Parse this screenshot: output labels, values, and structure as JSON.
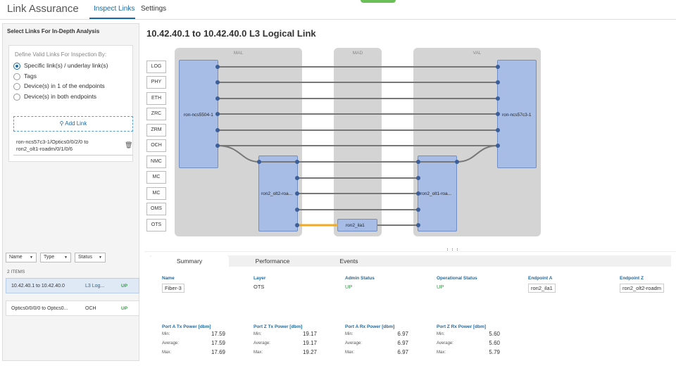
{
  "app": {
    "title": "Link Assurance",
    "tabs": [
      "Inspect Links",
      "Settings"
    ]
  },
  "left": {
    "heading": "Select Links For In-Depth Analysis",
    "define_label": "Define Valid Links For Inspection By:",
    "options": [
      "Specific link(s) / underlay link(s)",
      "Tags",
      "Device(s) in 1 of the endpoints",
      "Device(s) in both endpoints"
    ],
    "add_link": "Add Link",
    "link_entry_1": "ron-ncs57c3-1/Optics0/0/2/0 to",
    "link_entry_2": "ron2_olt1-roadm/0/1/0/6",
    "filters": [
      "Name",
      "Type",
      "Status"
    ],
    "items_count": "2 ITEMS",
    "rows": [
      {
        "name": "10.42.40.1 to 10.42.40.0",
        "type": "L3 Log...",
        "status": "UP"
      },
      {
        "name": "Optics0/0/0/0 to Optics0...",
        "type": "OCH",
        "status": "UP"
      }
    ]
  },
  "main": {
    "title": "10.42.40.1 to 10.42.40.0 L3 Logical Link"
  },
  "diagram": {
    "regions": [
      "MAL",
      "MAD",
      "VAL"
    ],
    "layers": [
      "LOG",
      "PHY",
      "ETH",
      "ZRC",
      "ZRM",
      "OCH",
      "NMC",
      "MC",
      "MC",
      "OMS",
      "OTS"
    ],
    "nodes": {
      "a": "ron-ncs5504-1",
      "b": "ron2_olt2-roa...",
      "c": "ron2_ila1",
      "d": "ron2_olt1-roa...",
      "e": "ron-ncs57c3-1"
    },
    "highlight_color": "#f0a821"
  },
  "bottom": {
    "tabs": [
      "Summary",
      "Performance",
      "Events"
    ],
    "props": [
      {
        "k": "Name",
        "v": "Fiber-3"
      },
      {
        "k": "Layer",
        "v": "OTS"
      },
      {
        "k": "Admin Status",
        "v": "UP"
      },
      {
        "k": "Operational Status",
        "v": "UP"
      },
      {
        "k": "Endpoint A",
        "v": "ron2_ila1"
      },
      {
        "k": "Endpoint Z",
        "v": "ron2_olt2-roadm"
      }
    ],
    "stats": [
      {
        "k": "Port A Tx Power [dbm]",
        "min": "17.59",
        "avg": "17.59",
        "max": "17.69"
      },
      {
        "k": "Port Z Tx Power [dbm]",
        "min": "19.17",
        "avg": "19.17",
        "max": "19.27"
      },
      {
        "k": "Port A Rx Power [dbm]",
        "min": "6.97",
        "avg": "6.97",
        "max": "6.97"
      },
      {
        "k": "Port Z Rx Power [dbm]",
        "min": "5.60",
        "avg": "5.60",
        "max": "5.79"
      }
    ],
    "stat_labels": {
      "min": "Min:",
      "avg": "Average:",
      "max": "Max:"
    }
  }
}
